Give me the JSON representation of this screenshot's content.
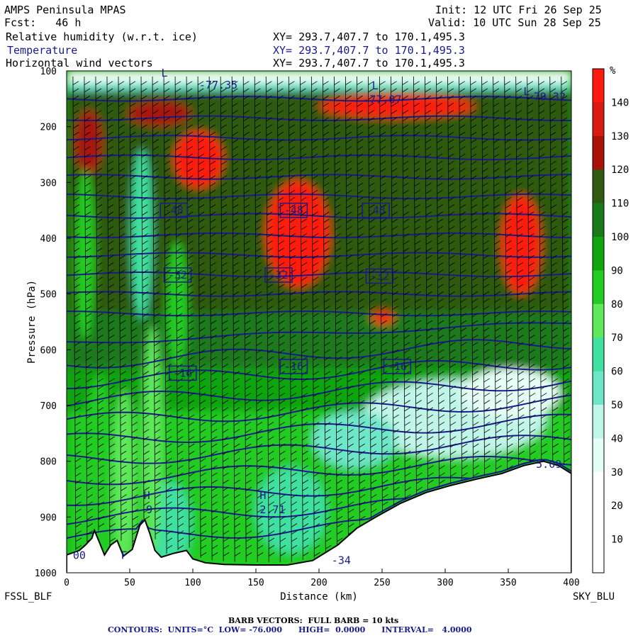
{
  "header": {
    "model": "AMPS Peninsula MPAS",
    "forecast": "Fcst:   46 h",
    "init": "Init: 12 UTC Fri 26 Sep 25",
    "valid": "Valid: 10 UTC Sun 28 Sep 25",
    "fields": [
      {
        "label": "Relative humidity (w.r.t. ice)",
        "xy": "XY= 293.7,407.7 to 170.1,495.3"
      },
      {
        "label": "Temperature",
        "xy": "XY= 293.7,407.7 to 170.1,495.3"
      },
      {
        "label": "Horizontal wind vectors",
        "xy": "XY= 293.7,407.7 to 170.1,495.3"
      }
    ]
  },
  "footer": {
    "left_station": "FSSL_BLF",
    "right_station": "SKY_BLU",
    "barb_note": "BARB VECTORS:  FULL BARB = 10 kts",
    "contour_note": "CONTOURS:  UNITS=°C  LOW= -76.000      HIGH=  0.0000      INTERVAL=   4.0000"
  },
  "colors": {
    "temperature_contour": "#1a1a8c",
    "scale": [
      "#ffffff",
      "#e6fff6",
      "#bff6e8",
      "#6ee6c8",
      "#40e0a0",
      "#5ee85a",
      "#22cc22",
      "#0fa50f",
      "#1a7a1a",
      "#2f5a10",
      "#a81208",
      "#d81a10",
      "#ff1a10"
    ]
  },
  "chart_data": {
    "type": "heatmap",
    "xlabel": "Distance (km)",
    "ylabel": "Pressure (hPa)",
    "xlim": [
      0,
      400
    ],
    "ylim": [
      1000,
      100
    ],
    "x_ticks": [
      0,
      50,
      100,
      150,
      200,
      250,
      300,
      350,
      400
    ],
    "y_ticks": [
      100,
      200,
      300,
      400,
      500,
      600,
      700,
      800,
      900,
      1000
    ],
    "colorbar": {
      "unit": "%",
      "levels": [
        10,
        20,
        30,
        40,
        50,
        60,
        70,
        80,
        90,
        100,
        110,
        120,
        130,
        140
      ]
    },
    "temperature_contour_labels": [
      {
        "x": 85,
        "p": 350,
        "text": "-48"
      },
      {
        "x": 180,
        "p": 350,
        "text": "-48"
      },
      {
        "x": 245,
        "p": 350,
        "text": "-48"
      },
      {
        "x": 88,
        "p": 466,
        "text": "-32"
      },
      {
        "x": 168,
        "p": 466,
        "text": "-32"
      },
      {
        "x": 248,
        "p": 468,
        "text": "-32"
      },
      {
        "x": 92,
        "p": 642,
        "text": "-16"
      },
      {
        "x": 180,
        "p": 630,
        "text": "-16"
      },
      {
        "x": 262,
        "p": 630,
        "text": "-16"
      }
    ],
    "annotations": [
      {
        "x": 105,
        "p": 132,
        "text": "-77.35"
      },
      {
        "x": 235,
        "p": 158,
        "text": "-77.07"
      },
      {
        "x": 365,
        "p": 153,
        "text": "-79.32"
      },
      {
        "x": 75,
        "p": 110,
        "text": "L"
      },
      {
        "x": 242,
        "p": 133,
        "text": "L"
      },
      {
        "x": 362,
        "p": 143,
        "text": "L"
      },
      {
        "x": 153,
        "p": 868,
        "text": "H"
      },
      {
        "x": 153,
        "p": 893,
        "text": "2.71"
      },
      {
        "x": 61,
        "p": 868,
        "text": "H"
      },
      {
        "x": 63,
        "p": 893,
        "text": "9"
      },
      {
        "x": 372,
        "p": 812,
        "text": "5.09"
      },
      {
        "x": 5,
        "p": 975,
        "text": "00"
      },
      {
        "x": 43,
        "p": 975,
        "text": "F"
      },
      {
        "x": 210,
        "p": 984,
        "text": "-34"
      }
    ],
    "terrain_pressure": [
      [
        0,
        968
      ],
      [
        10,
        960
      ],
      [
        15,
        950
      ],
      [
        20,
        938
      ],
      [
        22,
        924
      ],
      [
        25,
        940
      ],
      [
        30,
        968
      ],
      [
        35,
        950
      ],
      [
        40,
        942
      ],
      [
        45,
        970
      ],
      [
        52,
        958
      ],
      [
        58,
        915
      ],
      [
        62,
        905
      ],
      [
        66,
        930
      ],
      [
        70,
        960
      ],
      [
        75,
        972
      ],
      [
        85,
        965
      ],
      [
        95,
        960
      ],
      [
        100,
        975
      ],
      [
        110,
        982
      ],
      [
        125,
        985
      ],
      [
        150,
        986
      ],
      [
        175,
        986
      ],
      [
        195,
        978
      ],
      [
        215,
        950
      ],
      [
        230,
        920
      ],
      [
        245,
        900
      ],
      [
        265,
        875
      ],
      [
        285,
        856
      ],
      [
        305,
        843
      ],
      [
        325,
        832
      ],
      [
        345,
        822
      ],
      [
        362,
        808
      ],
      [
        378,
        800
      ],
      [
        390,
        808
      ],
      [
        400,
        822
      ]
    ]
  }
}
